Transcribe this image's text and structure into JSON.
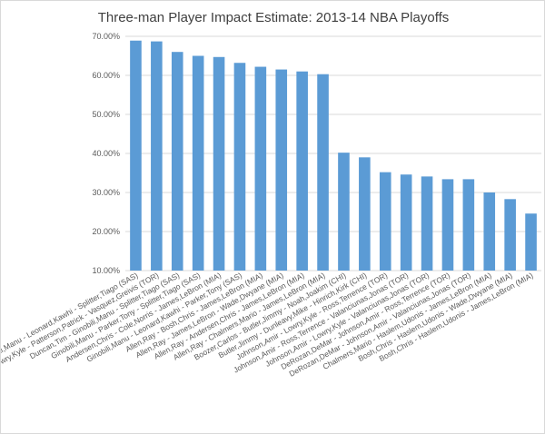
{
  "chart_data": {
    "type": "bar",
    "title": "Three-man Player Impact Estimate: 2013-14 NBA Playoffs",
    "xlabel": "",
    "ylabel": "",
    "ylim": [
      0.1,
      0.7
    ],
    "yticks": [
      0.1,
      0.2,
      0.3,
      0.4,
      0.5,
      0.6,
      0.7
    ],
    "ytick_labels": [
      "10.00%",
      "20.00%",
      "30.00%",
      "40.00%",
      "50.00%",
      "60.00%",
      "70.00%"
    ],
    "grid": "horizontal",
    "legend": "none",
    "bar_color": "#5b9bd5",
    "categories": [
      "Ginobili,Manu - Leonard,Kawhi - Splitter,Tiago (SAS)",
      "Lowry,Kyle - Patterson,Patrick - Vasquez,Greivis (TOR)",
      "Duncan,Tim - Ginobili,Manu - Splitter,Tiago (SAS)",
      "Ginobili,Manu - Parker,Tony - Splitter,Tiago (SAS)",
      "Andersen,Chris - Cole,Norris - James,LeBron (MIA)",
      "Ginobili,Manu - Leonard,Kawhi - Parker,Tony (SAS)",
      "Allen,Ray - Bosh,Chris - James,LeBron (MIA)",
      "Allen,Ray - James,LeBron - Wade,Dwyane (MIA)",
      "Allen,Ray - Andersen,Chris - James,LeBron (MIA)",
      "Allen,Ray - Chalmers,Mario - James,LeBron (MIA)",
      "Boozer,Carlos - Butler,Jimmy - Noah,Joakim (CHI)",
      "Butler,Jimmy - Dunleavy,Mike - Hinrich,Kirk (CHI)",
      "Johnson,Amir - Lowry,Kyle - Ross,Terrence (TOR)",
      "Johnson,Amir - Ross,Terrence - Valanciunas,Jonas (TOR)",
      "Johnson,Amir - Lowry,Kyle - Valanciunas,Jonas (TOR)",
      "DeRozan,DeMar - Johnson,Amir - Ross,Terrence (TOR)",
      "DeRozan,DeMar - Johnson,Amir - Valanciunas,Jonas (TOR)",
      "Chalmers,Mario - Haslem,Udonis - James,LeBron (MIA)",
      "Bosh,Chris - Haslem,Udonis - Wade,Dwyane (MIA)",
      "Bosh,Chris - Haslem,Udonis - James,LeBron (MIA)"
    ],
    "values": [
      0.689,
      0.687,
      0.66,
      0.65,
      0.647,
      0.632,
      0.622,
      0.615,
      0.61,
      0.603,
      0.402,
      0.39,
      0.352,
      0.346,
      0.341,
      0.334,
      0.334,
      0.3,
      0.283,
      0.246
    ]
  }
}
